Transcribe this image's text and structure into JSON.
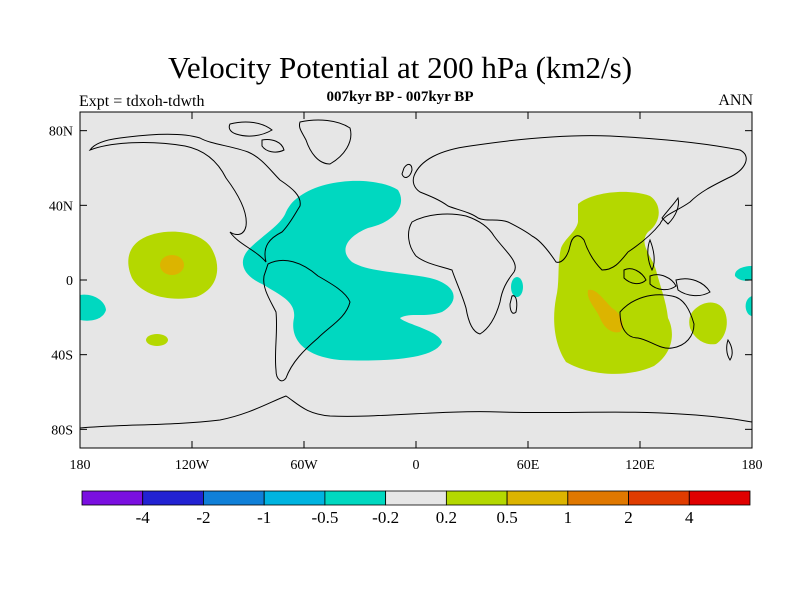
{
  "title": "Velocity Potential at 200 hPa (km2/s)",
  "subtitle": "007kyr BP - 007kyr BP",
  "left_label": "Expt = tdxoh-tdwth",
  "right_label": "ANN",
  "map": {
    "background_color": "#e6e6e6",
    "lat_labels": [
      "80N",
      "40N",
      "0",
      "40S",
      "80S"
    ],
    "lat_values": [
      80,
      40,
      0,
      -40,
      -80
    ],
    "lon_labels": [
      "180",
      "120W",
      "60W",
      "0",
      "60E",
      "120E",
      "180"
    ],
    "lon_values": [
      -180,
      -120,
      -60,
      0,
      60,
      120,
      180
    ]
  },
  "colorbar": {
    "colors": [
      "#7a0fe0",
      "#2222d2",
      "#1080d8",
      "#00b4e0",
      "#00d8c0",
      "#e6e6e6",
      "#b4d800",
      "#dcb400",
      "#e07800",
      "#e03c00",
      "#e00000"
    ],
    "labels": [
      "-4",
      "-2",
      "-1",
      "-0.5",
      "-0.2",
      "0.2",
      "0.5",
      "1",
      "2",
      "4"
    ]
  },
  "palette": {
    "negative_fill": "#00d8c0",
    "positive_fill": "#b4d800",
    "strong_positive_fill": "#dcb400",
    "coast": "#000000"
  }
}
